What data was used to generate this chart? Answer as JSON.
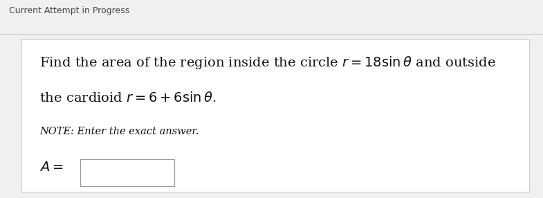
{
  "header_text": "Current Attempt in Progress",
  "header_fontsize": 9,
  "header_color": "#444444",
  "bg_color": "#f0f0f0",
  "box_bg_color": "#ffffff",
  "box_edge_color": "#cccccc",
  "line1": "Find the area of the region inside the circle $r = 18\\sin\\theta$ and outside",
  "line2": "the cardioid $r = 6 + 6\\sin\\theta$.",
  "note_text": "NOTE: Enter the exact answer.",
  "label_text": "$A =$",
  "main_fontsize": 14,
  "note_fontsize": 10.5,
  "label_fontsize": 14,
  "figsize": [
    7.85,
    2.86
  ],
  "dpi": 100
}
